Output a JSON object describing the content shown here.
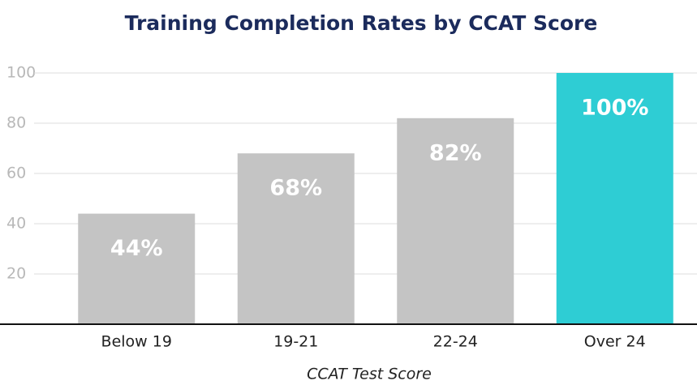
{
  "chart_data": {
    "type": "bar",
    "title": "Training Completion Rates by CCAT Score",
    "x_label": "CCAT Test Score",
    "categories": [
      "Below 19",
      "19-21",
      "22-24",
      "Over 24"
    ],
    "values": [
      44,
      68,
      82,
      100
    ],
    "value_labels": [
      "44%",
      "68%",
      "82%",
      "100%"
    ],
    "colors": [
      "#c4c4c4",
      "#c4c4c4",
      "#c4c4c4",
      "#2ecdd4"
    ],
    "ylim": [
      0,
      100
    ],
    "yticks": [
      20,
      40,
      60,
      80,
      100
    ],
    "grid": true
  }
}
